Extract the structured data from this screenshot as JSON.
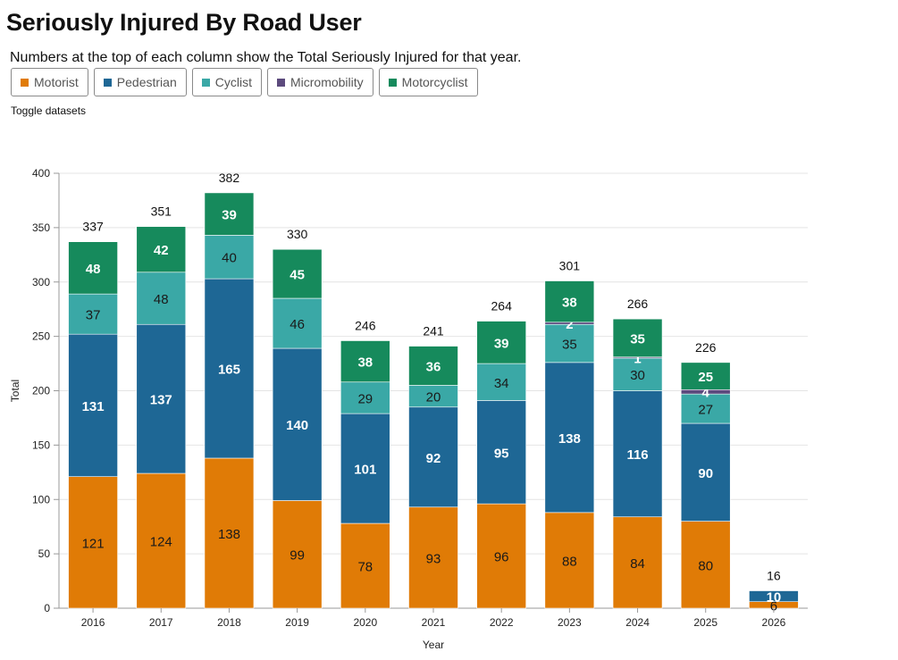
{
  "page": {
    "title": "Seriously Injured By Road User",
    "subtitle": "Numbers at the top of each column show the Total Seriously Injured for that year.",
    "toggle_label": "Toggle datasets"
  },
  "colors": {
    "Motorist": "#e07b06",
    "Pedestrian": "#1e6795",
    "Cyclist": "#3aa8a6",
    "Micromobility": "#5c4a7d",
    "Motorcyclist": "#168a5c"
  },
  "chart_data": {
    "type": "bar",
    "stacked": true,
    "xlabel": "Year",
    "ylabel": "Total",
    "ylim": [
      0,
      400
    ],
    "yticks": [
      0,
      50,
      100,
      150,
      200,
      250,
      300,
      350,
      400
    ],
    "grid": true,
    "categories": [
      "2016",
      "2017",
      "2018",
      "2019",
      "2020",
      "2021",
      "2022",
      "2023",
      "2024",
      "2025",
      "2026"
    ],
    "totals": [
      337,
      351,
      382,
      330,
      246,
      241,
      264,
      301,
      266,
      226,
      16
    ],
    "series": [
      {
        "name": "Motorist",
        "values": [
          121,
          124,
          138,
          99,
          78,
          93,
          96,
          88,
          84,
          80,
          6
        ]
      },
      {
        "name": "Pedestrian",
        "values": [
          131,
          137,
          165,
          140,
          101,
          92,
          95,
          138,
          116,
          90,
          10
        ]
      },
      {
        "name": "Cyclist",
        "values": [
          37,
          48,
          40,
          46,
          29,
          20,
          34,
          35,
          30,
          27,
          0
        ]
      },
      {
        "name": "Micromobility",
        "values": [
          0,
          0,
          0,
          0,
          0,
          0,
          0,
          2,
          1,
          4,
          0
        ]
      },
      {
        "name": "Motorcyclist",
        "values": [
          48,
          42,
          39,
          45,
          38,
          36,
          39,
          38,
          35,
          25,
          0
        ]
      }
    ]
  }
}
